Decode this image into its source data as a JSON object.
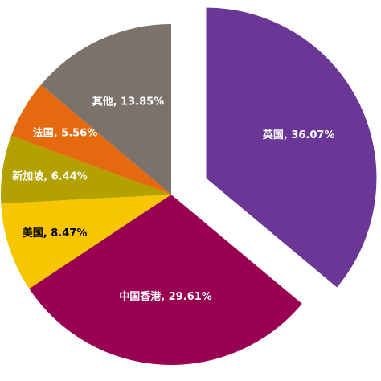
{
  "chart_data": {
    "type": "pie",
    "categories": [
      "英国",
      "中国香港",
      "美国",
      "新加坡",
      "法国",
      "其他"
    ],
    "values": [
      36.07,
      29.61,
      8.47,
      6.44,
      5.56,
      13.85
    ],
    "value_labels": [
      "36.07%",
      "29.61%",
      "8.47%",
      "6.44%",
      "5.56%",
      "13.85%"
    ],
    "label_separator": ", ",
    "colors": [
      "#6a3796",
      "#990051",
      "#f7c600",
      "#b3a100",
      "#e4690f",
      "#7b726c"
    ],
    "label_colors": [
      "#ffffff",
      "#ffffff",
      "#000000",
      "#ffffff",
      "#ffffff",
      "#ffffff"
    ],
    "exploded": [
      0
    ]
  }
}
